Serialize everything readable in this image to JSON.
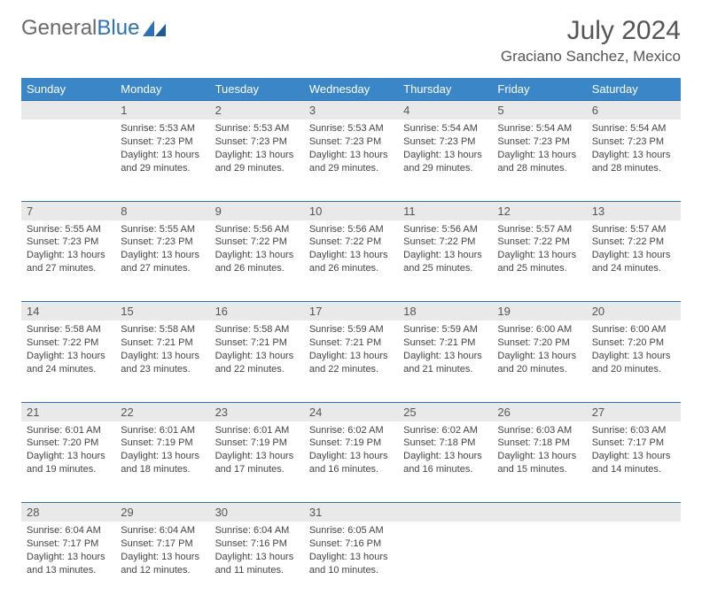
{
  "colors": {
    "header_bg": "#3b86c7",
    "daynum_bg": "#e9e9e9",
    "rule": "#2d72b8",
    "text": "#444444",
    "title": "#555555"
  },
  "logo": {
    "part1": "General",
    "part2": "Blue"
  },
  "title": "July 2024",
  "location": "Graciano Sanchez, Mexico",
  "weekdays": [
    "Sunday",
    "Monday",
    "Tuesday",
    "Wednesday",
    "Thursday",
    "Friday",
    "Saturday"
  ],
  "weeks": [
    {
      "nums": [
        "",
        "1",
        "2",
        "3",
        "4",
        "5",
        "6"
      ],
      "cells": [
        null,
        {
          "sunrise": "Sunrise: 5:53 AM",
          "sunset": "Sunset: 7:23 PM",
          "day1": "Daylight: 13 hours",
          "day2": "and 29 minutes."
        },
        {
          "sunrise": "Sunrise: 5:53 AM",
          "sunset": "Sunset: 7:23 PM",
          "day1": "Daylight: 13 hours",
          "day2": "and 29 minutes."
        },
        {
          "sunrise": "Sunrise: 5:53 AM",
          "sunset": "Sunset: 7:23 PM",
          "day1": "Daylight: 13 hours",
          "day2": "and 29 minutes."
        },
        {
          "sunrise": "Sunrise: 5:54 AM",
          "sunset": "Sunset: 7:23 PM",
          "day1": "Daylight: 13 hours",
          "day2": "and 29 minutes."
        },
        {
          "sunrise": "Sunrise: 5:54 AM",
          "sunset": "Sunset: 7:23 PM",
          "day1": "Daylight: 13 hours",
          "day2": "and 28 minutes."
        },
        {
          "sunrise": "Sunrise: 5:54 AM",
          "sunset": "Sunset: 7:23 PM",
          "day1": "Daylight: 13 hours",
          "day2": "and 28 minutes."
        }
      ]
    },
    {
      "nums": [
        "7",
        "8",
        "9",
        "10",
        "11",
        "12",
        "13"
      ],
      "cells": [
        {
          "sunrise": "Sunrise: 5:55 AM",
          "sunset": "Sunset: 7:23 PM",
          "day1": "Daylight: 13 hours",
          "day2": "and 27 minutes."
        },
        {
          "sunrise": "Sunrise: 5:55 AM",
          "sunset": "Sunset: 7:23 PM",
          "day1": "Daylight: 13 hours",
          "day2": "and 27 minutes."
        },
        {
          "sunrise": "Sunrise: 5:56 AM",
          "sunset": "Sunset: 7:22 PM",
          "day1": "Daylight: 13 hours",
          "day2": "and 26 minutes."
        },
        {
          "sunrise": "Sunrise: 5:56 AM",
          "sunset": "Sunset: 7:22 PM",
          "day1": "Daylight: 13 hours",
          "day2": "and 26 minutes."
        },
        {
          "sunrise": "Sunrise: 5:56 AM",
          "sunset": "Sunset: 7:22 PM",
          "day1": "Daylight: 13 hours",
          "day2": "and 25 minutes."
        },
        {
          "sunrise": "Sunrise: 5:57 AM",
          "sunset": "Sunset: 7:22 PM",
          "day1": "Daylight: 13 hours",
          "day2": "and 25 minutes."
        },
        {
          "sunrise": "Sunrise: 5:57 AM",
          "sunset": "Sunset: 7:22 PM",
          "day1": "Daylight: 13 hours",
          "day2": "and 24 minutes."
        }
      ]
    },
    {
      "nums": [
        "14",
        "15",
        "16",
        "17",
        "18",
        "19",
        "20"
      ],
      "cells": [
        {
          "sunrise": "Sunrise: 5:58 AM",
          "sunset": "Sunset: 7:22 PM",
          "day1": "Daylight: 13 hours",
          "day2": "and 24 minutes."
        },
        {
          "sunrise": "Sunrise: 5:58 AM",
          "sunset": "Sunset: 7:21 PM",
          "day1": "Daylight: 13 hours",
          "day2": "and 23 minutes."
        },
        {
          "sunrise": "Sunrise: 5:58 AM",
          "sunset": "Sunset: 7:21 PM",
          "day1": "Daylight: 13 hours",
          "day2": "and 22 minutes."
        },
        {
          "sunrise": "Sunrise: 5:59 AM",
          "sunset": "Sunset: 7:21 PM",
          "day1": "Daylight: 13 hours",
          "day2": "and 22 minutes."
        },
        {
          "sunrise": "Sunrise: 5:59 AM",
          "sunset": "Sunset: 7:21 PM",
          "day1": "Daylight: 13 hours",
          "day2": "and 21 minutes."
        },
        {
          "sunrise": "Sunrise: 6:00 AM",
          "sunset": "Sunset: 7:20 PM",
          "day1": "Daylight: 13 hours",
          "day2": "and 20 minutes."
        },
        {
          "sunrise": "Sunrise: 6:00 AM",
          "sunset": "Sunset: 7:20 PM",
          "day1": "Daylight: 13 hours",
          "day2": "and 20 minutes."
        }
      ]
    },
    {
      "nums": [
        "21",
        "22",
        "23",
        "24",
        "25",
        "26",
        "27"
      ],
      "cells": [
        {
          "sunrise": "Sunrise: 6:01 AM",
          "sunset": "Sunset: 7:20 PM",
          "day1": "Daylight: 13 hours",
          "day2": "and 19 minutes."
        },
        {
          "sunrise": "Sunrise: 6:01 AM",
          "sunset": "Sunset: 7:19 PM",
          "day1": "Daylight: 13 hours",
          "day2": "and 18 minutes."
        },
        {
          "sunrise": "Sunrise: 6:01 AM",
          "sunset": "Sunset: 7:19 PM",
          "day1": "Daylight: 13 hours",
          "day2": "and 17 minutes."
        },
        {
          "sunrise": "Sunrise: 6:02 AM",
          "sunset": "Sunset: 7:19 PM",
          "day1": "Daylight: 13 hours",
          "day2": "and 16 minutes."
        },
        {
          "sunrise": "Sunrise: 6:02 AM",
          "sunset": "Sunset: 7:18 PM",
          "day1": "Daylight: 13 hours",
          "day2": "and 16 minutes."
        },
        {
          "sunrise": "Sunrise: 6:03 AM",
          "sunset": "Sunset: 7:18 PM",
          "day1": "Daylight: 13 hours",
          "day2": "and 15 minutes."
        },
        {
          "sunrise": "Sunrise: 6:03 AM",
          "sunset": "Sunset: 7:17 PM",
          "day1": "Daylight: 13 hours",
          "day2": "and 14 minutes."
        }
      ]
    },
    {
      "nums": [
        "28",
        "29",
        "30",
        "31",
        "",
        "",
        ""
      ],
      "cells": [
        {
          "sunrise": "Sunrise: 6:04 AM",
          "sunset": "Sunset: 7:17 PM",
          "day1": "Daylight: 13 hours",
          "day2": "and 13 minutes."
        },
        {
          "sunrise": "Sunrise: 6:04 AM",
          "sunset": "Sunset: 7:17 PM",
          "day1": "Daylight: 13 hours",
          "day2": "and 12 minutes."
        },
        {
          "sunrise": "Sunrise: 6:04 AM",
          "sunset": "Sunset: 7:16 PM",
          "day1": "Daylight: 13 hours",
          "day2": "and 11 minutes."
        },
        {
          "sunrise": "Sunrise: 6:05 AM",
          "sunset": "Sunset: 7:16 PM",
          "day1": "Daylight: 13 hours",
          "day2": "and 10 minutes."
        },
        null,
        null,
        null
      ]
    }
  ]
}
